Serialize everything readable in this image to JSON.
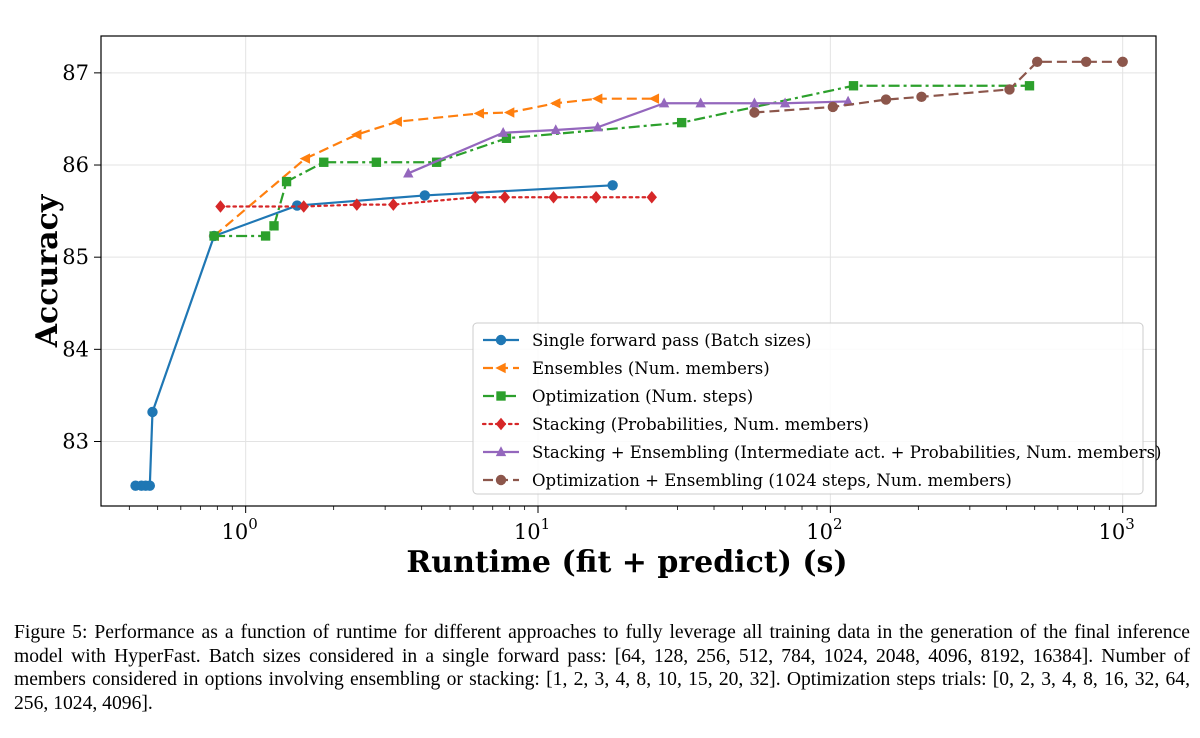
{
  "chart_data": {
    "type": "line",
    "xscale": "log",
    "xlabel": "Runtime (fit + predict) (s)",
    "ylabel": "Accuracy",
    "xlim": [
      0.32,
      1300
    ],
    "ylim": [
      82.3,
      87.4
    ],
    "xticks": [
      {
        "value": 1,
        "base": "10",
        "exp": "0"
      },
      {
        "value": 10,
        "base": "10",
        "exp": "1"
      },
      {
        "value": 100,
        "base": "10",
        "exp": "2"
      },
      {
        "value": 1000,
        "base": "10",
        "exp": "3"
      }
    ],
    "yticks": [
      {
        "value": 83,
        "label": "83"
      },
      {
        "value": 84,
        "label": "84"
      },
      {
        "value": 85,
        "label": "85"
      },
      {
        "value": 86,
        "label": "86"
      },
      {
        "value": 87,
        "label": "87"
      }
    ],
    "grid": true,
    "legend_position": "lower-right",
    "series": [
      {
        "name": "Single forward pass (Batch sizes)",
        "color": "#1f77b4",
        "dash": "solid",
        "marker": "circle",
        "x": [
          0.42,
          0.44,
          0.455,
          0.47,
          0.48,
          0.78,
          1.5,
          4.1,
          18.0
        ],
        "y": [
          82.52,
          82.52,
          82.52,
          82.52,
          83.32,
          85.23,
          85.56,
          85.67,
          85.78
        ]
      },
      {
        "name": "Ensembles (Num. members)",
        "color": "#ff7f0e",
        "dash": "dashed",
        "marker": "triangle-left",
        "x": [
          0.78,
          1.6,
          2.4,
          3.3,
          6.3,
          8.0,
          11.5,
          16.0,
          25.0
        ],
        "y": [
          85.23,
          86.07,
          86.33,
          86.47,
          86.56,
          86.57,
          86.67,
          86.72,
          86.72
        ]
      },
      {
        "name": "Optimization (Num. steps)",
        "color": "#2ca02c",
        "dash": "dashdot",
        "marker": "square",
        "x": [
          0.78,
          1.17,
          1.25,
          1.38,
          1.85,
          2.8,
          4.5,
          7.8,
          31.0,
          120.0,
          480.0
        ],
        "y": [
          85.23,
          85.23,
          85.34,
          85.82,
          86.03,
          86.03,
          86.03,
          86.29,
          86.46,
          86.86,
          86.86
        ]
      },
      {
        "name": "Stacking (Probabilities, Num. members)",
        "color": "#d62728",
        "dash": "dotted",
        "marker": "diamond",
        "x": [
          0.82,
          1.58,
          2.4,
          3.2,
          6.1,
          7.7,
          11.3,
          15.8,
          24.5
        ],
        "y": [
          85.55,
          85.55,
          85.57,
          85.57,
          85.65,
          85.65,
          85.65,
          85.65,
          85.65
        ]
      },
      {
        "name": "Stacking + Ensembling (Intermediate act. + Probabilities, Num. members)",
        "color": "#9467bd",
        "dash": "solid",
        "marker": "triangle-up",
        "x": [
          3.6,
          7.6,
          11.5,
          16.0,
          27.0,
          36.0,
          55.0,
          70.0,
          115.0
        ],
        "y": [
          85.91,
          86.35,
          86.38,
          86.41,
          86.67,
          86.67,
          86.67,
          86.67,
          86.69
        ]
      },
      {
        "name": "Optimization + Ensembling (1024 steps, Num. members)",
        "color": "#8c564b",
        "dash": "dashed",
        "marker": "circle",
        "x": [
          55.0,
          102.0,
          155.0,
          205.0,
          410.0,
          510.0,
          750.0,
          1000.0
        ],
        "y": [
          86.57,
          86.63,
          86.71,
          86.74,
          86.82,
          87.12,
          87.12,
          87.12
        ]
      }
    ]
  },
  "caption": {
    "prefix": "Figure 5:",
    "text": " Performance as a function of runtime for different approaches to fully leverage all training data in the generation of the final inference model with HyperFast. Batch sizes considered in a single forward pass: [64, 128, 256, 512, 784, 1024, 2048, 4096, 8192, 16384]. Number of members considered in options involving ensembling or stacking: [1, 2, 3, 4, 8, 10, 15, 20, 32]. Optimization steps trials: [0, 2, 3, 4, 8, 16, 32, 64, 256, 1024, 4096]."
  }
}
